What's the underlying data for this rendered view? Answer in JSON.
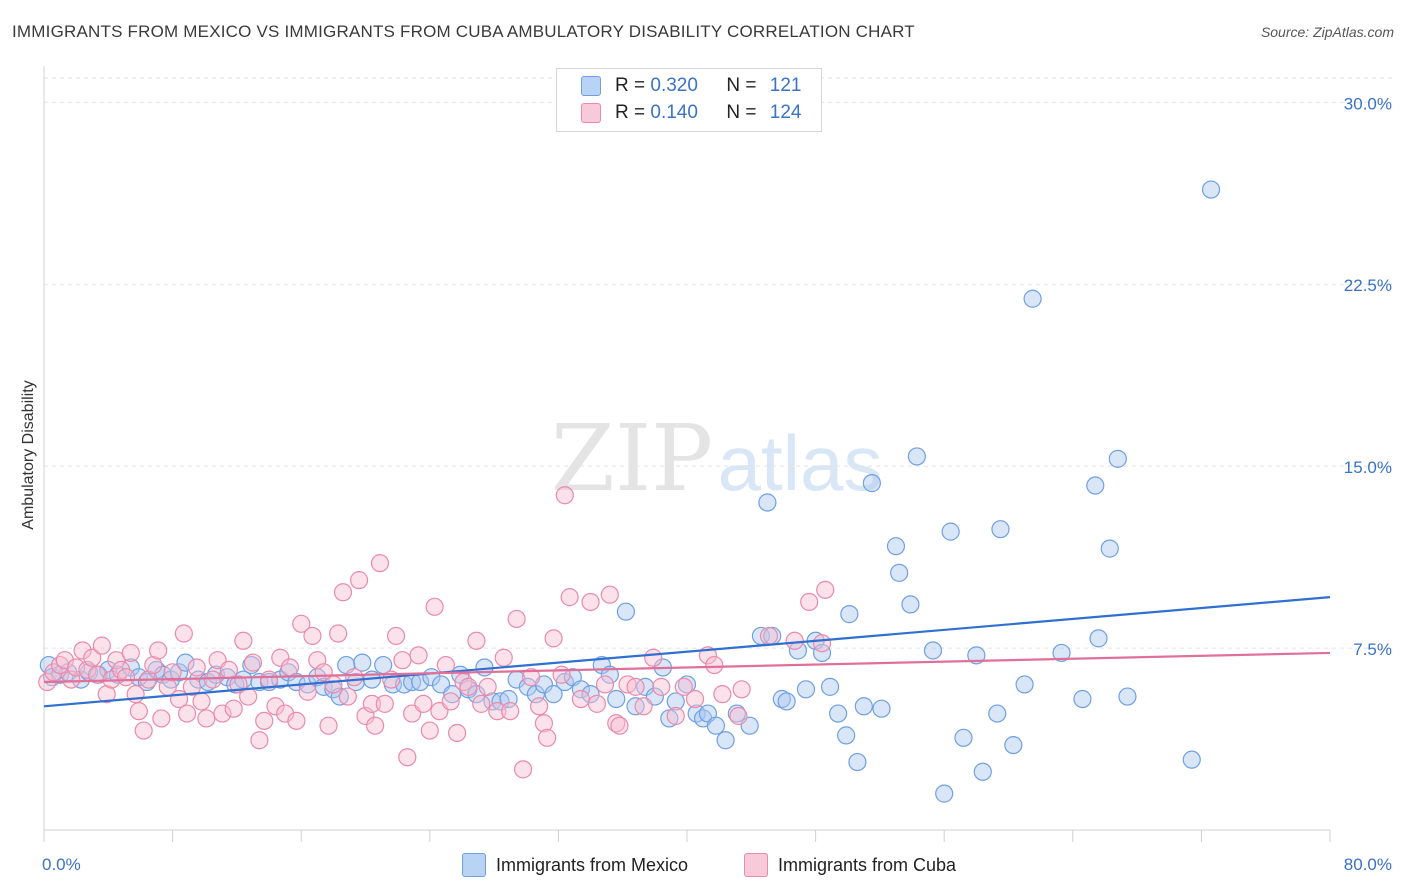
{
  "title": "IMMIGRANTS FROM MEXICO VS IMMIGRANTS FROM CUBA AMBULATORY DISABILITY CORRELATION CHART",
  "source": "Source: ZipAtlas.com",
  "watermark": {
    "zip": "ZIP",
    "atlas": "atlas"
  },
  "legend": {
    "mexico": {
      "r_label": "R = ",
      "r_value": "0.320",
      "n_label": "N = ",
      "n_value": "121"
    },
    "cuba": {
      "r_label": "R = ",
      "r_value": "0.140",
      "n_label": "N = ",
      "n_value": "124"
    }
  },
  "colors": {
    "mexico": "#6fa0e4",
    "mexico_fill": "#aac8f0",
    "mexico_line": "#3070d0",
    "cuba": "#eb8aab",
    "cuba_fill": "#f6bdd0",
    "cuba_line": "#e0709a",
    "axis_text": "#3a72c6",
    "grid": "#e2e2e2"
  },
  "chart_data": {
    "type": "scatter",
    "title": "IMMIGRANTS FROM MEXICO VS IMMIGRANTS FROM CUBA AMBULATORY DISABILITY CORRELATION CHART",
    "xlabel": "",
    "ylabel": "Ambulatory Disability",
    "xlim": [
      0,
      80
    ],
    "ylim": [
      0,
      31
    ],
    "x_tick_labels": [
      "0.0%",
      "80.0%"
    ],
    "y_ticks": [
      7.5,
      15.0,
      22.5,
      30.0
    ],
    "y_tick_labels": [
      "7.5%",
      "15.0%",
      "22.5%",
      "30.0%"
    ],
    "grid": true,
    "legend_position": "top-center",
    "series": [
      {
        "name": "Immigrants from Mexico",
        "R": 0.32,
        "N": 121,
        "trend": {
          "x0": 0,
          "y0": 5.1,
          "x1": 80,
          "y1": 9.6
        },
        "points": [
          [
            0.3,
            6.8
          ],
          [
            0.5,
            6.3
          ],
          [
            1.0,
            6.4
          ],
          [
            1.5,
            6.5
          ],
          [
            2.3,
            6.2
          ],
          [
            2.8,
            6.5
          ],
          [
            3.4,
            6.4
          ],
          [
            4.0,
            6.6
          ],
          [
            4.6,
            6.4
          ],
          [
            5.4,
            6.7
          ],
          [
            5.9,
            6.3
          ],
          [
            6.4,
            6.1
          ],
          [
            7.0,
            6.6
          ],
          [
            7.4,
            6.4
          ],
          [
            7.9,
            6.2
          ],
          [
            8.4,
            6.5
          ],
          [
            8.8,
            6.9
          ],
          [
            9.6,
            6.2
          ],
          [
            10.2,
            6.1
          ],
          [
            10.7,
            6.4
          ],
          [
            11.4,
            6.3
          ],
          [
            11.9,
            6.0
          ],
          [
            12.4,
            6.2
          ],
          [
            12.9,
            6.8
          ],
          [
            13.4,
            6.1
          ],
          [
            14.0,
            6.1
          ],
          [
            14.7,
            6.2
          ],
          [
            15.2,
            6.5
          ],
          [
            15.7,
            6.1
          ],
          [
            16.4,
            6.0
          ],
          [
            17.0,
            6.3
          ],
          [
            17.4,
            5.9
          ],
          [
            18.0,
            5.8
          ],
          [
            18.4,
            5.5
          ],
          [
            18.8,
            6.8
          ],
          [
            19.4,
            6.1
          ],
          [
            19.8,
            6.9
          ],
          [
            20.4,
            6.2
          ],
          [
            21.1,
            6.8
          ],
          [
            21.7,
            6.0
          ],
          [
            22.4,
            6.0
          ],
          [
            22.9,
            6.1
          ],
          [
            23.4,
            6.1
          ],
          [
            24.1,
            6.3
          ],
          [
            24.7,
            6.0
          ],
          [
            25.4,
            5.6
          ],
          [
            25.9,
            6.4
          ],
          [
            26.4,
            5.8
          ],
          [
            26.9,
            5.6
          ],
          [
            27.4,
            6.7
          ],
          [
            27.9,
            5.3
          ],
          [
            28.4,
            5.3
          ],
          [
            28.9,
            5.4
          ],
          [
            29.4,
            6.2
          ],
          [
            30.1,
            5.9
          ],
          [
            30.6,
            5.6
          ],
          [
            31.1,
            6.0
          ],
          [
            31.7,
            5.6
          ],
          [
            32.4,
            6.1
          ],
          [
            32.9,
            6.3
          ],
          [
            33.4,
            5.8
          ],
          [
            34.0,
            5.6
          ],
          [
            34.7,
            6.8
          ],
          [
            35.2,
            6.4
          ],
          [
            35.6,
            5.4
          ],
          [
            36.2,
            9.0
          ],
          [
            36.8,
            5.1
          ],
          [
            37.4,
            5.9
          ],
          [
            38.0,
            5.5
          ],
          [
            38.5,
            6.7
          ],
          [
            38.9,
            4.6
          ],
          [
            39.3,
            5.3
          ],
          [
            40.0,
            6.0
          ],
          [
            40.6,
            4.8
          ],
          [
            41.0,
            4.6
          ],
          [
            41.3,
            4.8
          ],
          [
            41.8,
            4.3
          ],
          [
            42.4,
            3.7
          ],
          [
            43.1,
            4.8
          ],
          [
            43.9,
            4.3
          ],
          [
            44.6,
            8.0
          ],
          [
            45.0,
            13.5
          ],
          [
            45.3,
            8.0
          ],
          [
            45.9,
            5.4
          ],
          [
            46.2,
            5.3
          ],
          [
            46.9,
            7.4
          ],
          [
            47.4,
            5.8
          ],
          [
            48.0,
            7.8
          ],
          [
            48.4,
            7.3
          ],
          [
            48.9,
            5.9
          ],
          [
            49.4,
            4.8
          ],
          [
            49.9,
            3.9
          ],
          [
            50.1,
            8.9
          ],
          [
            50.6,
            2.8
          ],
          [
            51.0,
            5.1
          ],
          [
            51.5,
            14.3
          ],
          [
            52.1,
            5.0
          ],
          [
            53.0,
            11.7
          ],
          [
            53.2,
            10.6
          ],
          [
            53.9,
            9.3
          ],
          [
            54.3,
            15.4
          ],
          [
            55.3,
            7.4
          ],
          [
            56.0,
            1.5
          ],
          [
            56.4,
            12.3
          ],
          [
            57.2,
            3.8
          ],
          [
            58.0,
            7.2
          ],
          [
            58.4,
            2.4
          ],
          [
            59.3,
            4.8
          ],
          [
            59.5,
            12.4
          ],
          [
            60.3,
            3.5
          ],
          [
            61.0,
            6.0
          ],
          [
            61.5,
            21.9
          ],
          [
            63.3,
            7.3
          ],
          [
            64.6,
            5.4
          ],
          [
            65.4,
            14.2
          ],
          [
            65.6,
            7.9
          ],
          [
            66.3,
            11.6
          ],
          [
            66.8,
            15.3
          ],
          [
            67.4,
            5.5
          ],
          [
            71.4,
            2.9
          ],
          [
            72.6,
            26.4
          ]
        ]
      },
      {
        "name": "Immigrants from Cuba",
        "R": 0.14,
        "N": 124,
        "trend": {
          "x0": 0,
          "y0": 6.1,
          "x1": 80,
          "y1": 7.3
        },
        "points": [
          [
            0.2,
            6.1
          ],
          [
            0.6,
            6.5
          ],
          [
            1.0,
            6.8
          ],
          [
            1.3,
            7.0
          ],
          [
            1.7,
            6.2
          ],
          [
            2.0,
            6.7
          ],
          [
            2.4,
            7.4
          ],
          [
            2.7,
            6.6
          ],
          [
            3.0,
            7.1
          ],
          [
            3.3,
            6.4
          ],
          [
            3.6,
            7.6
          ],
          [
            3.9,
            5.6
          ],
          [
            4.2,
            6.2
          ],
          [
            4.5,
            7.0
          ],
          [
            4.8,
            6.6
          ],
          [
            5.1,
            6.3
          ],
          [
            5.4,
            7.3
          ],
          [
            5.7,
            5.6
          ],
          [
            5.9,
            4.9
          ],
          [
            6.2,
            4.1
          ],
          [
            6.5,
            6.2
          ],
          [
            6.8,
            6.8
          ],
          [
            7.1,
            7.4
          ],
          [
            7.3,
            4.6
          ],
          [
            7.7,
            5.9
          ],
          [
            8.0,
            6.5
          ],
          [
            8.4,
            5.4
          ],
          [
            8.7,
            8.1
          ],
          [
            8.9,
            4.8
          ],
          [
            9.2,
            5.9
          ],
          [
            9.5,
            6.7
          ],
          [
            9.8,
            5.3
          ],
          [
            10.1,
            4.6
          ],
          [
            10.5,
            6.2
          ],
          [
            10.8,
            7.0
          ],
          [
            11.1,
            4.8
          ],
          [
            11.5,
            6.6
          ],
          [
            11.8,
            5.0
          ],
          [
            12.1,
            6.0
          ],
          [
            12.4,
            7.8
          ],
          [
            12.7,
            5.5
          ],
          [
            13.0,
            6.9
          ],
          [
            13.4,
            3.7
          ],
          [
            13.7,
            4.5
          ],
          [
            14.0,
            6.2
          ],
          [
            14.4,
            5.1
          ],
          [
            14.7,
            7.1
          ],
          [
            15.0,
            4.8
          ],
          [
            15.3,
            6.7
          ],
          [
            15.7,
            4.5
          ],
          [
            16.0,
            8.5
          ],
          [
            16.4,
            5.7
          ],
          [
            16.7,
            8.0
          ],
          [
            17.0,
            7.0
          ],
          [
            17.4,
            6.5
          ],
          [
            17.7,
            4.3
          ],
          [
            18.0,
            6.0
          ],
          [
            18.3,
            8.1
          ],
          [
            18.6,
            9.8
          ],
          [
            18.9,
            5.5
          ],
          [
            19.3,
            6.3
          ],
          [
            19.6,
            10.3
          ],
          [
            20.0,
            4.7
          ],
          [
            20.4,
            5.2
          ],
          [
            20.6,
            4.3
          ],
          [
            20.9,
            11.0
          ],
          [
            21.2,
            5.2
          ],
          [
            21.6,
            6.2
          ],
          [
            21.9,
            8.0
          ],
          [
            22.3,
            7.0
          ],
          [
            22.6,
            3.0
          ],
          [
            22.9,
            4.8
          ],
          [
            23.3,
            7.2
          ],
          [
            23.6,
            5.2
          ],
          [
            24.0,
            4.1
          ],
          [
            24.3,
            9.2
          ],
          [
            24.6,
            4.9
          ],
          [
            25.0,
            6.8
          ],
          [
            25.3,
            5.3
          ],
          [
            25.7,
            4.0
          ],
          [
            26.1,
            6.1
          ],
          [
            26.4,
            5.9
          ],
          [
            26.9,
            7.8
          ],
          [
            27.2,
            5.2
          ],
          [
            27.6,
            5.9
          ],
          [
            28.2,
            4.9
          ],
          [
            28.6,
            7.1
          ],
          [
            29.0,
            4.9
          ],
          [
            29.4,
            8.7
          ],
          [
            29.8,
            2.5
          ],
          [
            30.3,
            6.3
          ],
          [
            30.8,
            5.1
          ],
          [
            31.1,
            4.4
          ],
          [
            31.3,
            3.8
          ],
          [
            31.7,
            7.9
          ],
          [
            32.2,
            6.4
          ],
          [
            32.4,
            13.8
          ],
          [
            32.7,
            9.6
          ],
          [
            33.4,
            5.4
          ],
          [
            34.0,
            9.4
          ],
          [
            34.4,
            5.2
          ],
          [
            34.9,
            6.0
          ],
          [
            35.2,
            9.7
          ],
          [
            35.6,
            4.4
          ],
          [
            35.8,
            4.3
          ],
          [
            36.3,
            6.0
          ],
          [
            36.8,
            5.9
          ],
          [
            37.3,
            5.1
          ],
          [
            37.9,
            7.1
          ],
          [
            38.4,
            5.9
          ],
          [
            39.3,
            4.7
          ],
          [
            39.8,
            5.9
          ],
          [
            40.5,
            5.4
          ],
          [
            41.3,
            7.2
          ],
          [
            41.7,
            6.8
          ],
          [
            42.2,
            5.6
          ],
          [
            43.2,
            4.7
          ],
          [
            43.4,
            5.8
          ],
          [
            45.1,
            8.0
          ],
          [
            46.7,
            7.8
          ],
          [
            47.6,
            9.4
          ],
          [
            48.4,
            7.7
          ],
          [
            48.6,
            9.9
          ]
        ]
      }
    ]
  },
  "bottom_legend": {
    "mexico": "Immigrants from Mexico",
    "cuba": "Immigrants from Cuba"
  }
}
